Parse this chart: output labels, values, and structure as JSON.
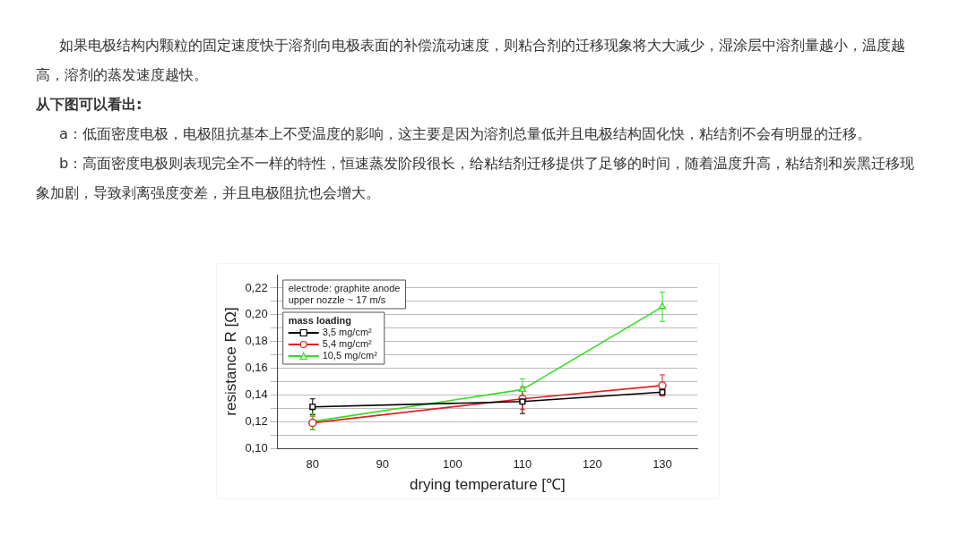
{
  "chart_data": {
    "type": "line",
    "annotations": [
      "如果电极结构内颗粒的固定速度快于溶剂向电极表面的补偿流动速度，则粘合剂的迁移现象将大大减少，湿涂层中溶剂量越小，温度越高，溶剂的蒸发速度越快。",
      "从下图可以看出:",
      "a：低面密度电极，电极阻抗基本上不受温度的影响，这主要是因为溶剂总量低并且电极结构固化快，粘结剂不会有明显的迁移。",
      "b：高面密度电极则表现完全不一样的特性，恒速蒸发阶段很长，给粘结剂迁移提供了足够的时间，随着温度升高，粘结剂和炭黑迁移现象加剧，导致剥离强度变差，并且电极阻抗也会增大。",
      "electrode: graphite anode",
      "upper nozzle ~ 17 m/s"
    ],
    "xlabel": "drying temperature [℃]",
    "ylabel": "resistance R [Ω]",
    "legend_title": "mass loading",
    "x": [
      80,
      110,
      130
    ],
    "series": [
      {
        "name": "3,5 mg/cm²",
        "color": "#000000",
        "marker": "square",
        "values": [
          0.131,
          0.135,
          0.142
        ],
        "errors": [
          0.006,
          [
            0.126,
            0.143
          ],
          0.002
        ]
      },
      {
        "name": "5,4 mg/cm²",
        "color": "#e02020",
        "marker": "circle",
        "values": [
          0.119,
          0.137,
          0.147
        ],
        "errors": [
          0.005,
          [
            0.129,
            0.146
          ],
          0.008
        ]
      },
      {
        "name": "10,5 mg/cm²",
        "color": "#33dd22",
        "marker": "triangle",
        "values": [
          0.12,
          0.144,
          0.206
        ],
        "errors": [
          0.006,
          0.008,
          0.011
        ]
      }
    ],
    "xlim": [
      75,
      135
    ],
    "xticks": [
      80,
      90,
      100,
      110,
      120,
      130
    ],
    "ylim": [
      0.1,
      0.23
    ],
    "yticks": [
      {
        "value": 0.1,
        "label": "0,10"
      },
      {
        "value": 0.11,
        "label": null
      },
      {
        "value": 0.12,
        "label": "0,12"
      },
      {
        "value": 0.13,
        "label": null
      },
      {
        "value": 0.14,
        "label": "0,14"
      },
      {
        "value": 0.15,
        "label": null
      },
      {
        "value": 0.16,
        "label": "0,16"
      },
      {
        "value": 0.17,
        "label": null
      },
      {
        "value": 0.18,
        "label": "0,18"
      },
      {
        "value": 0.19,
        "label": null
      },
      {
        "value": 0.2,
        "label": "0,20"
      },
      {
        "value": 0.21,
        "label": null
      },
      {
        "value": 0.22,
        "label": "0,22"
      }
    ],
    "grid": "y",
    "legend": "top left",
    "line_style": "solid"
  }
}
